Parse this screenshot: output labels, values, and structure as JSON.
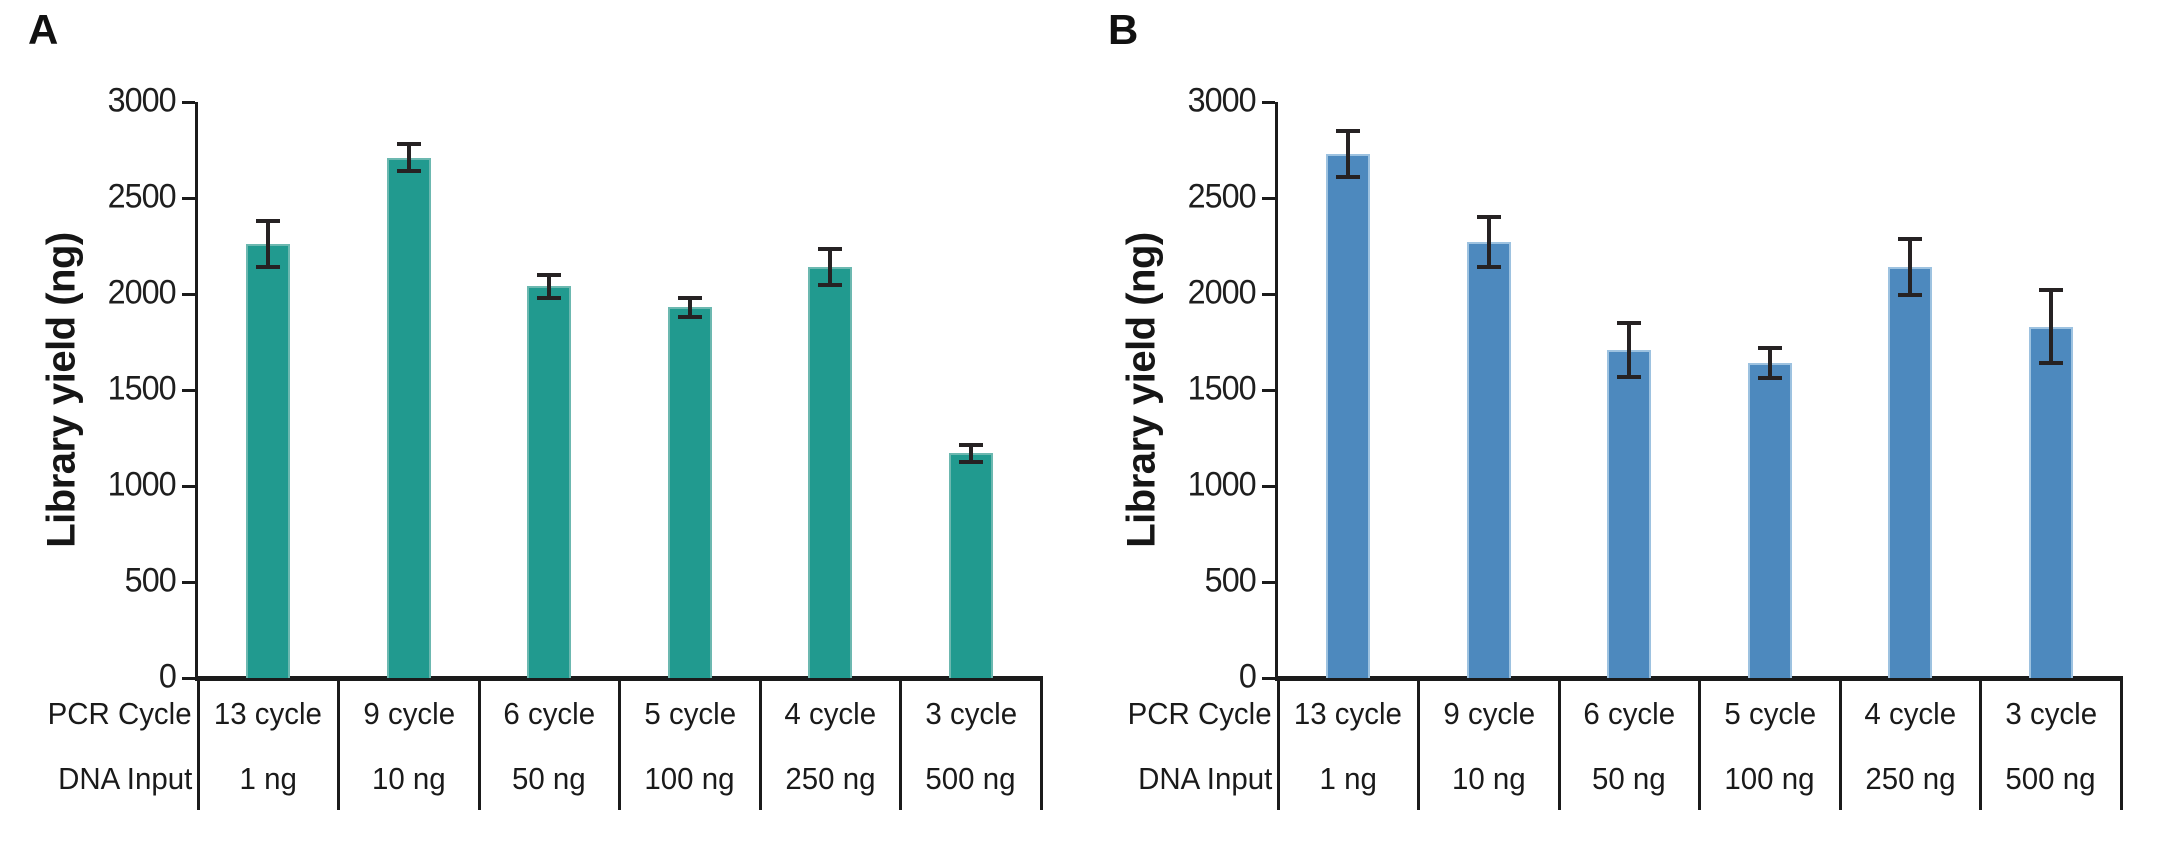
{
  "figure": {
    "background": "#ffffff"
  },
  "panels": [
    {
      "label": "A"
    },
    {
      "label": "B"
    }
  ],
  "chart_data": [
    {
      "type": "bar",
      "panel": "A",
      "title": "",
      "xlabel": "",
      "ylabel": "Library yield (ng)",
      "ylim": [
        0,
        3000
      ],
      "yticks": [
        0,
        500,
        1000,
        1500,
        2000,
        2500,
        3000
      ],
      "grid": false,
      "legend": "none",
      "bar_color": "#219a8f",
      "bar_edge_color": "#6cb8b0",
      "error_color": "#262223",
      "x_table": {
        "row_labels": [
          "PCR Cycle",
          "DNA Input"
        ],
        "rows": [
          [
            "13 cycle",
            "9 cycle",
            "6 cycle",
            "5 cycle",
            "4 cycle",
            "3 cycle"
          ],
          [
            "1 ng",
            "10 ng",
            "50 ng",
            "100 ng",
            "250 ng",
            "500 ng"
          ]
        ]
      },
      "values": [
        2260,
        2710,
        2040,
        1930,
        2140,
        1170
      ],
      "errors": [
        120,
        70,
        60,
        50,
        95,
        45
      ]
    },
    {
      "type": "bar",
      "panel": "B",
      "title": "",
      "xlabel": "",
      "ylabel": "Library yield (ng)",
      "ylim": [
        0,
        3000
      ],
      "yticks": [
        0,
        500,
        1000,
        1500,
        2000,
        2500,
        3000
      ],
      "grid": false,
      "legend": "none",
      "bar_color": "#4d89be",
      "bar_edge_color": "#9dc2e0",
      "error_color": "#262223",
      "x_table": {
        "row_labels": [
          "PCR Cycle",
          "DNA Input"
        ],
        "rows": [
          [
            "13 cycle",
            "9 cycle",
            "6 cycle",
            "5 cycle",
            "4 cycle",
            "3 cycle"
          ],
          [
            "1 ng",
            "10 ng",
            "50 ng",
            "100 ng",
            "250 ng",
            "500 ng"
          ]
        ]
      },
      "values": [
        2730,
        2270,
        1710,
        1640,
        2140,
        1830
      ],
      "errors": [
        120,
        130,
        140,
        80,
        145,
        190
      ]
    }
  ]
}
